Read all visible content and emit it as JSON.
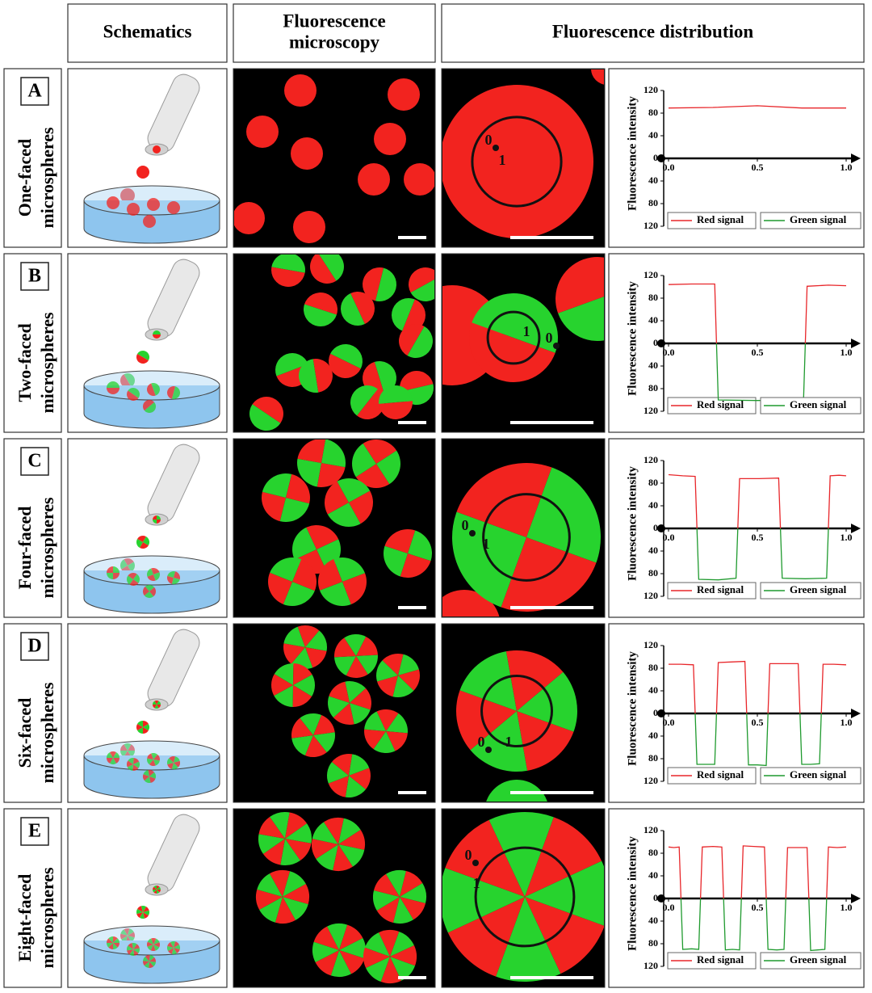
{
  "headers": [
    [
      "Schematics"
    ],
    [
      "Fluorescence",
      "microscopy"
    ],
    [
      "Fluorescence distribution"
    ]
  ],
  "rows": [
    {
      "letter": "A",
      "label_lines": [
        "One-faced",
        "microspheres"
      ],
      "circle_labels": [
        "0",
        "1"
      ]
    },
    {
      "letter": "B",
      "label_lines": [
        "Two-faced",
        "microspheres"
      ],
      "circle_labels": [
        "0",
        "1"
      ]
    },
    {
      "letter": "C",
      "label_lines": [
        "Four-faced",
        "microspheres"
      ],
      "circle_labels": [
        "0",
        "1"
      ]
    },
    {
      "letter": "D",
      "label_lines": [
        "Six-faced",
        "microspheres"
      ],
      "circle_labels": [
        "0",
        "1"
      ]
    },
    {
      "letter": "E",
      "label_lines": [
        "Eight-faced",
        "microspheres"
      ],
      "circle_labels": [
        "0",
        "1"
      ]
    }
  ],
  "chart_data": [
    {
      "type": "line",
      "y_label": "Fluorescence intensity",
      "x": [
        0,
        0.25,
        0.5,
        0.75,
        1.0
      ],
      "series": [
        {
          "name": "Red signal",
          "color": "#e8262a",
          "values": [
            89,
            90,
            93,
            89,
            89
          ]
        },
        {
          "name": "Green signal",
          "color": "#1f9a2e",
          "values": [
            null,
            null,
            null,
            null,
            null
          ]
        }
      ],
      "xlim": [
        0,
        1
      ],
      "ylim": [
        -120,
        120
      ],
      "xticks": [
        {
          "value": 0,
          "label": "0.0"
        },
        0.5,
        {
          "value": 1,
          "label": "1.0"
        }
      ],
      "yticks": [
        {
          "value": -120,
          "label": "120"
        },
        {
          "value": -80,
          "label": "80"
        },
        {
          "value": -40,
          "label": "40"
        },
        0,
        40,
        80,
        120
      ]
    },
    {
      "type": "line",
      "y_label": "Fluorescence intensity",
      "x": [
        0,
        0.13,
        0.26,
        0.27,
        0.28,
        0.5,
        0.76,
        0.77,
        0.78,
        0.9,
        1.0
      ],
      "series": [
        {
          "name": "Red signal",
          "color": "#e8262a",
          "values": [
            104,
            105,
            105,
            0,
            null,
            null,
            null,
            0,
            101,
            103,
            102
          ]
        },
        {
          "name": "Green signal",
          "color": "#1f9a2e",
          "values": [
            null,
            null,
            null,
            0,
            -100,
            -101,
            -100,
            0,
            null,
            null,
            null
          ]
        }
      ],
      "xlim": [
        0,
        1
      ],
      "ylim": [
        -120,
        120
      ],
      "xticks": [
        {
          "value": 0,
          "label": "0.0"
        },
        0.5,
        {
          "value": 1,
          "label": "1.0"
        }
      ],
      "yticks": [
        {
          "value": -120,
          "label": "120"
        },
        {
          "value": -80,
          "label": "80"
        },
        {
          "value": -40,
          "label": "40"
        },
        0,
        40,
        80,
        120
      ]
    },
    {
      "type": "line",
      "y_label": "Fluorescence intensity",
      "x": [
        0,
        0.08,
        0.15,
        0.16,
        0.17,
        0.28,
        0.38,
        0.39,
        0.4,
        0.51,
        0.62,
        0.63,
        0.64,
        0.77,
        0.89,
        0.9,
        0.91,
        0.96,
        1.0
      ],
      "series": [
        {
          "name": "Red signal",
          "color": "#e8262a",
          "values": [
            95,
            93,
            92,
            0,
            null,
            null,
            null,
            0,
            88,
            88,
            89,
            0,
            null,
            null,
            null,
            0,
            93,
            94,
            93
          ]
        },
        {
          "name": "Green signal",
          "color": "#1f9a2e",
          "values": [
            null,
            null,
            null,
            0,
            -90,
            -91,
            -88,
            0,
            null,
            null,
            null,
            0,
            -88,
            -89,
            -88,
            0,
            null,
            null,
            null
          ]
        }
      ],
      "xlim": [
        0,
        1
      ],
      "ylim": [
        -120,
        120
      ],
      "xticks": [
        {
          "value": 0,
          "label": "0.0"
        },
        0.5,
        {
          "value": 1,
          "label": "1.0"
        }
      ],
      "yticks": [
        {
          "value": -120,
          "label": "120"
        },
        {
          "value": -80,
          "label": "80"
        },
        {
          "value": -40,
          "label": "40"
        },
        0,
        40,
        80,
        120
      ]
    },
    {
      "type": "line",
      "y_label": "Fluorescence intensity",
      "x": [
        0,
        0.07,
        0.14,
        0.15,
        0.16,
        0.21,
        0.26,
        0.27,
        0.28,
        0.35,
        0.43,
        0.44,
        0.45,
        0.5,
        0.55,
        0.56,
        0.57,
        0.65,
        0.73,
        0.74,
        0.75,
        0.8,
        0.85,
        0.86,
        0.87,
        0.93,
        1.0
      ],
      "series": [
        {
          "name": "Red signal",
          "color": "#e8262a",
          "values": [
            87,
            87,
            86,
            0,
            null,
            null,
            null,
            0,
            90,
            91,
            92,
            0,
            null,
            null,
            null,
            0,
            88,
            88,
            88,
            0,
            null,
            null,
            null,
            0,
            87,
            87,
            86
          ]
        },
        {
          "name": "Green signal",
          "color": "#1f9a2e",
          "values": [
            null,
            null,
            null,
            0,
            -90,
            -90,
            -90,
            0,
            null,
            null,
            null,
            0,
            -91,
            -91,
            -92,
            0,
            null,
            null,
            null,
            0,
            -90,
            -90,
            -89,
            0,
            null,
            null,
            null
          ]
        }
      ],
      "xlim": [
        0,
        1
      ],
      "ylim": [
        -120,
        120
      ],
      "xticks": [
        {
          "value": 0,
          "label": "0.0"
        },
        0.5,
        {
          "value": 1,
          "label": "1.0"
        }
      ],
      "yticks": [
        {
          "value": -120,
          "label": "120"
        },
        {
          "value": -80,
          "label": "80"
        },
        {
          "value": -40,
          "label": "40"
        },
        0,
        40,
        80,
        120
      ]
    },
    {
      "type": "line",
      "y_label": "Fluorescence intensity",
      "x": [
        0,
        0.03,
        0.06,
        0.07,
        0.08,
        0.13,
        0.17,
        0.18,
        0.19,
        0.25,
        0.3,
        0.31,
        0.32,
        0.36,
        0.4,
        0.41,
        0.42,
        0.48,
        0.54,
        0.55,
        0.56,
        0.61,
        0.65,
        0.66,
        0.67,
        0.73,
        0.78,
        0.79,
        0.8,
        0.84,
        0.88,
        0.89,
        0.9,
        0.95,
        1.0
      ],
      "series": [
        {
          "name": "Red signal",
          "color": "#e8262a",
          "values": [
            91,
            90,
            91,
            0,
            null,
            null,
            null,
            0,
            91,
            92,
            91,
            0,
            null,
            null,
            null,
            0,
            93,
            92,
            91,
            0,
            null,
            null,
            null,
            0,
            90,
            90,
            90,
            0,
            null,
            null,
            null,
            0,
            91,
            90,
            91
          ]
        },
        {
          "name": "Green signal",
          "color": "#1f9a2e",
          "values": [
            null,
            null,
            null,
            0,
            -90,
            -89,
            -90,
            0,
            null,
            null,
            null,
            0,
            -91,
            -90,
            -91,
            0,
            null,
            null,
            null,
            0,
            -90,
            -91,
            -90,
            0,
            null,
            null,
            null,
            0,
            -92,
            -91,
            -90,
            0,
            null,
            null,
            null
          ]
        }
      ],
      "xlim": [
        0,
        1
      ],
      "ylim": [
        -120,
        120
      ],
      "xticks": [
        {
          "value": 0,
          "label": "0.0"
        },
        0.5,
        {
          "value": 1,
          "label": "1.0"
        }
      ],
      "yticks": [
        {
          "value": -120,
          "label": "120"
        },
        {
          "value": -80,
          "label": "80"
        },
        {
          "value": -40,
          "label": "40"
        },
        0,
        40,
        80,
        120
      ]
    }
  ]
}
